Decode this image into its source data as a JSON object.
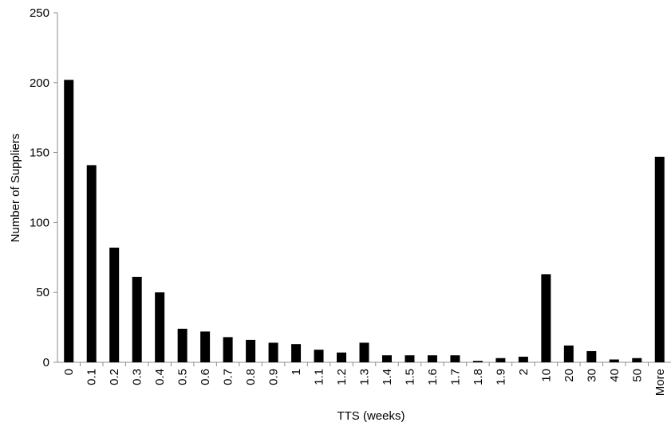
{
  "chart_data": {
    "type": "bar",
    "title": "",
    "xlabel": "TTS (weeks)",
    "ylabel": "Number of Suppliers",
    "ylim": [
      0,
      250
    ],
    "yticks": [
      0,
      50,
      100,
      150,
      200,
      250
    ],
    "grid": false,
    "legend": "none",
    "bar_color": "#000000",
    "categories": [
      "0",
      "0.1",
      "0.2",
      "0.3",
      "0.4",
      "0.5",
      "0.6",
      "0.7",
      "0.8",
      "0.9",
      "1",
      "1.1",
      "1.2",
      "1.3",
      "1.4",
      "1.5",
      "1.6",
      "1.7",
      "1.8",
      "1.9",
      "2",
      "10",
      "20",
      "30",
      "40",
      "50",
      "More"
    ],
    "values": [
      202,
      141,
      82,
      61,
      50,
      24,
      22,
      18,
      16,
      14,
      13,
      9,
      7,
      14,
      5,
      5,
      5,
      5,
      1,
      3,
      4,
      63,
      12,
      8,
      2,
      3,
      147
    ]
  }
}
